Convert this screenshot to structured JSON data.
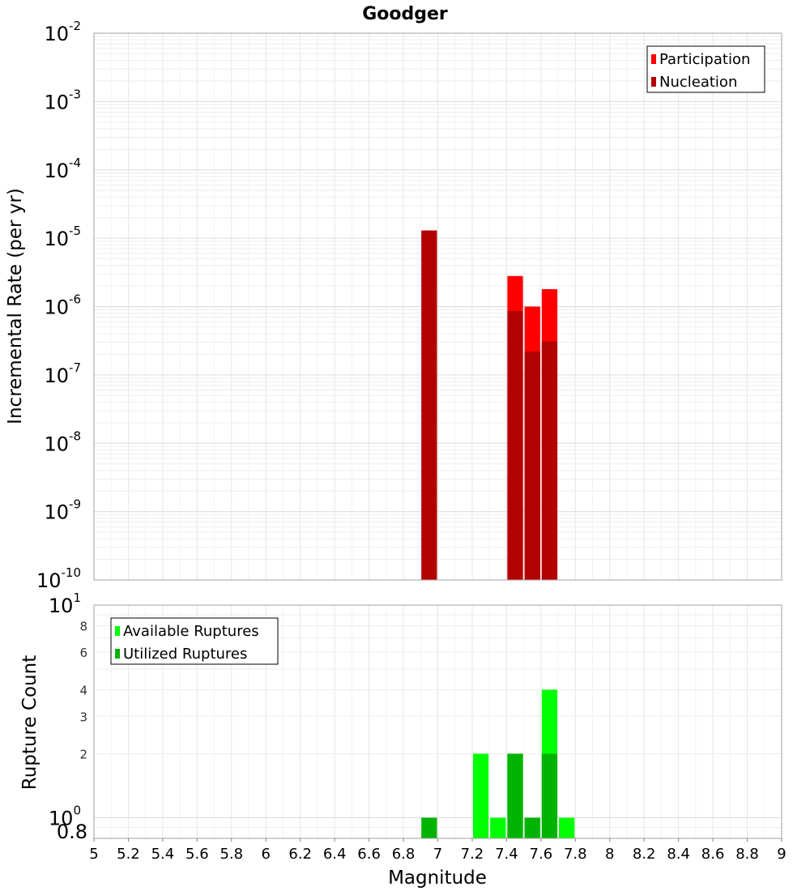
{
  "chart_data": {
    "title": "Goodger",
    "xlabel": "Magnitude",
    "xlim": [
      5,
      9
    ],
    "x_ticks": [
      5,
      5.2,
      5.4,
      5.6,
      5.8,
      6,
      6.2,
      6.4,
      6.6,
      6.8,
      7,
      7.2,
      7.4,
      7.6,
      7.8,
      8,
      8.2,
      8.4,
      8.6,
      8.8,
      9
    ],
    "bin_width": 0.1,
    "grid": true,
    "panels": [
      {
        "name": "rate",
        "type": "bar",
        "ylabel": "Incremental Rate (per yr)",
        "yscale": "log",
        "ylim": [
          1e-10,
          0.01
        ],
        "y_major_exponents": [
          -10,
          -9,
          -8,
          -7,
          -6,
          -5,
          -4,
          -3,
          -2
        ],
        "legend_position": "top-right",
        "series": [
          {
            "name": "Participation",
            "color": "#ff0000",
            "x": [
              6.95,
              7.45,
              7.55,
              7.65
            ],
            "values": [
              1.3e-05,
              2.8e-06,
              1e-06,
              1.8e-06
            ]
          },
          {
            "name": "Nucleation",
            "color": "#b30000",
            "x": [
              6.95,
              7.45,
              7.55,
              7.65
            ],
            "values": [
              1.3e-05,
              8.6e-07,
              2.2e-07,
              3.1e-07
            ]
          }
        ]
      },
      {
        "name": "count",
        "type": "bar",
        "ylabel": "Rupture Count",
        "yscale": "log",
        "ylim": [
          0.8,
          10
        ],
        "y_major_exponents": [
          0,
          1
        ],
        "y_minor_ticks": [
          0.8,
          2,
          3,
          4,
          6,
          8
        ],
        "legend_position": "top-left",
        "series": [
          {
            "name": "Available Ruptures",
            "color": "#00ff00",
            "x": [
              6.95,
              7.25,
              7.35,
              7.45,
              7.55,
              7.65,
              7.75
            ],
            "values": [
              1,
              2,
              1,
              2,
              1,
              4,
              1
            ]
          },
          {
            "name": "Utilized Ruptures",
            "color": "#00b300",
            "x": [
              6.95,
              7.45,
              7.55,
              7.65
            ],
            "values": [
              1,
              2,
              1,
              2
            ]
          }
        ]
      }
    ]
  }
}
